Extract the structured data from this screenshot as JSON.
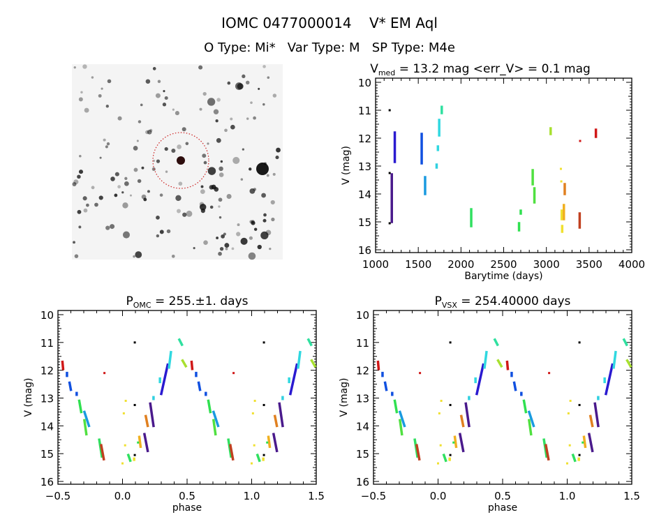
{
  "header": {
    "title": "IOMC 0477000014    V* EM Aql",
    "subtitle": "O Type: Mi*   Var Type: M   SP Type: M4e"
  },
  "finding_chart": {
    "target_circle_color": "#cc2020"
  },
  "chart_data": [
    {
      "type": "scatter",
      "title_main": "V",
      "title_sub": "med",
      "title_rest": " = 13.2 mag <err_V> = 0.1 mag",
      "xlabel": "Barytime (days)",
      "ylabel": "V (mag)",
      "xlim": [
        1000,
        4000
      ],
      "ylim": [
        16.1,
        9.85
      ],
      "y_inverted": true,
      "xticks": [
        "1000",
        "1500",
        "2000",
        "2500",
        "3000",
        "3500",
        "4000"
      ],
      "yticks": [
        "10",
        "11",
        "12",
        "13",
        "14",
        "15",
        "16"
      ],
      "grid": false,
      "segments": [
        {
          "x": 1165,
          "y1": 11.0,
          "y2": 11.0,
          "color": "#000000"
        },
        {
          "x": 1165,
          "y1": 13.25,
          "y2": 13.25,
          "color": "#000000"
        },
        {
          "x": 1165,
          "y1": 15.05,
          "y2": 15.05,
          "color": "#000000"
        },
        {
          "x": 1190,
          "y1": 13.3,
          "y2": 15.0,
          "color": "#4a1a8c"
        },
        {
          "x": 1225,
          "y1": 11.8,
          "y2": 12.85,
          "color": "#2a1ad0"
        },
        {
          "x": 1540,
          "y1": 11.85,
          "y2": 12.9,
          "color": "#1050e0"
        },
        {
          "x": 1580,
          "y1": 13.4,
          "y2": 14.0,
          "color": "#1a9ae0"
        },
        {
          "x": 1715,
          "y1": 12.95,
          "y2": 13.05,
          "color": "#30d0e0"
        },
        {
          "x": 1730,
          "y1": 12.3,
          "y2": 12.42,
          "color": "#30d8e0"
        },
        {
          "x": 1745,
          "y1": 11.35,
          "y2": 11.9,
          "color": "#30d8e0"
        },
        {
          "x": 1775,
          "y1": 10.88,
          "y2": 11.1,
          "color": "#30e0a0"
        },
        {
          "x": 2120,
          "y1": 14.55,
          "y2": 15.15,
          "color": "#30e060"
        },
        {
          "x": 2680,
          "y1": 15.05,
          "y2": 15.3,
          "color": "#30e050"
        },
        {
          "x": 2700,
          "y1": 14.6,
          "y2": 14.7,
          "color": "#30e050"
        },
        {
          "x": 2840,
          "y1": 13.15,
          "y2": 13.65,
          "color": "#50e040"
        },
        {
          "x": 2860,
          "y1": 13.8,
          "y2": 14.3,
          "color": "#50e040"
        },
        {
          "x": 3050,
          "y1": 11.65,
          "y2": 11.85,
          "color": "#a8e030"
        },
        {
          "x": 3170,
          "y1": 13.1,
          "y2": 13.12,
          "color": "#f0e030"
        },
        {
          "x": 3175,
          "y1": 13.55,
          "y2": 13.57,
          "color": "#f0e030"
        },
        {
          "x": 3180,
          "y1": 14.6,
          "y2": 14.9,
          "color": "#f0e030"
        },
        {
          "x": 3185,
          "y1": 15.15,
          "y2": 15.35,
          "color": "#f0e030"
        },
        {
          "x": 3205,
          "y1": 14.4,
          "y2": 14.9,
          "color": "#f0b020"
        },
        {
          "x": 3215,
          "y1": 13.65,
          "y2": 14.0,
          "color": "#e08020"
        },
        {
          "x": 3390,
          "y1": 14.7,
          "y2": 15.2,
          "color": "#c04020"
        },
        {
          "x": 3395,
          "y1": 12.1,
          "y2": 12.12,
          "color": "#d01818"
        },
        {
          "x": 3580,
          "y1": 11.7,
          "y2": 11.95,
          "color": "#d01818"
        }
      ]
    },
    {
      "type": "scatter",
      "title_main": "P",
      "title_sub": "OMC",
      "title_rest": " = 255.±1. days",
      "xlabel": "phase",
      "ylabel": "V (mag)",
      "xlim": [
        -0.5,
        1.5
      ],
      "ylim": [
        16.1,
        9.85
      ],
      "y_inverted": true,
      "xticks": [
        "-0.5",
        "0.0",
        "0.5",
        "1.0",
        "1.5"
      ],
      "yticks": [
        "10",
        "11",
        "12",
        "13",
        "14",
        "15",
        "16"
      ],
      "grid": false,
      "phase_repeated": true,
      "segments": [
        {
          "p1": 0.535,
          "p2": 0.54,
          "y1": 11.7,
          "y2": 11.95,
          "color": "#d01818"
        },
        {
          "p1": 0.86,
          "p2": 0.86,
          "y1": 12.1,
          "y2": 12.12,
          "color": "#d01818"
        },
        {
          "p1": 0.57,
          "p2": 0.57,
          "y1": 12.1,
          "y2": 12.2,
          "color": "#1050e0"
        },
        {
          "p1": 0.59,
          "p2": 0.6,
          "y1": 12.45,
          "y2": 12.7,
          "color": "#1050e0"
        },
        {
          "p1": 0.645,
          "p2": 0.645,
          "y1": 12.82,
          "y2": 12.88,
          "color": "#1050e0"
        },
        {
          "p1": 0.665,
          "p2": 0.68,
          "y1": 13.1,
          "y2": 13.5,
          "color": "#30e050"
        },
        {
          "p1": 0.705,
          "p2": 0.74,
          "y1": 13.5,
          "y2": 14.0,
          "color": "#1a9ae0"
        },
        {
          "p1": 0.705,
          "p2": 0.72,
          "y1": 13.8,
          "y2": 14.3,
          "color": "#50e040"
        },
        {
          "p1": 0.82,
          "p2": 0.84,
          "y1": 14.5,
          "y2": 15.1,
          "color": "#30e060"
        },
        {
          "p1": 0.835,
          "p2": 0.855,
          "y1": 14.7,
          "y2": 15.2,
          "color": "#c04020"
        },
        {
          "p1": 0.0,
          "p2": 0.0,
          "y1": 15.35,
          "y2": 15.37,
          "color": "#f0e030"
        },
        {
          "p1": 0.025,
          "p2": 0.025,
          "y1": 13.1,
          "y2": 13.12,
          "color": "#f0e030"
        },
        {
          "p1": 0.01,
          "p2": 0.01,
          "y1": 13.55,
          "y2": 13.57,
          "color": "#f0e030"
        },
        {
          "p1": 0.02,
          "p2": 0.02,
          "y1": 14.7,
          "y2": 14.72,
          "color": "#f0e030"
        },
        {
          "p1": 0.045,
          "p2": 0.06,
          "y1": 15.05,
          "y2": 15.25,
          "color": "#30e060"
        },
        {
          "p1": 0.095,
          "p2": 0.095,
          "y1": 11.0,
          "y2": 11.02,
          "color": "#000000"
        },
        {
          "p1": 0.095,
          "p2": 0.095,
          "y1": 13.25,
          "y2": 13.27,
          "color": "#000000"
        },
        {
          "p1": 0.095,
          "p2": 0.095,
          "y1": 15.05,
          "y2": 15.07,
          "color": "#000000"
        },
        {
          "p1": 0.09,
          "p2": 0.09,
          "y1": 15.18,
          "y2": 15.22,
          "color": "#f0e030"
        },
        {
          "p1": 0.13,
          "p2": 0.14,
          "y1": 14.4,
          "y2": 14.75,
          "color": "#f0b020"
        },
        {
          "p1": 0.12,
          "p2": 0.12,
          "y1": 14.6,
          "y2": 14.62,
          "color": "#30e050"
        },
        {
          "p1": 0.17,
          "p2": 0.195,
          "y1": 14.3,
          "y2": 14.9,
          "color": "#4a1a8c"
        },
        {
          "p1": 0.18,
          "p2": 0.195,
          "y1": 13.65,
          "y2": 14.0,
          "color": "#e08020"
        },
        {
          "p1": 0.215,
          "p2": 0.24,
          "y1": 13.2,
          "y2": 14.0,
          "color": "#4a1a8c"
        },
        {
          "p1": 0.24,
          "p2": 0.24,
          "y1": 12.97,
          "y2": 13.03,
          "color": "#30d0e0"
        },
        {
          "p1": 0.3,
          "p2": 0.35,
          "y1": 12.85,
          "y2": 11.8,
          "color": "#2a1ad0"
        },
        {
          "p1": 0.29,
          "p2": 0.29,
          "y1": 12.3,
          "y2": 12.42,
          "color": "#30d8e0"
        },
        {
          "p1": 0.36,
          "p2": 0.375,
          "y1": 11.9,
          "y2": 11.35,
          "color": "#30d8e0"
        },
        {
          "p1": 0.44,
          "p2": 0.46,
          "y1": 10.9,
          "y2": 11.08,
          "color": "#30e0a0"
        },
        {
          "p1": 0.465,
          "p2": 0.49,
          "y1": 11.65,
          "y2": 11.85,
          "color": "#a8e030"
        }
      ]
    },
    {
      "type": "scatter",
      "title_main": "P",
      "title_sub": "VSX",
      "title_rest": " = 254.40000 days",
      "xlabel": "phase",
      "ylabel": "V (mag)",
      "xlim": [
        -0.5,
        1.5
      ],
      "ylim": [
        16.1,
        9.85
      ],
      "y_inverted": true,
      "xticks": [
        "-0.5",
        "0.0",
        "0.5",
        "1.0",
        "1.5"
      ],
      "yticks": [
        "10",
        "11",
        "12",
        "13",
        "14",
        "15",
        "16"
      ],
      "grid": false,
      "phase_repeated": true,
      "segments": [
        {
          "p1": 0.535,
          "p2": 0.54,
          "y1": 11.7,
          "y2": 11.95,
          "color": "#d01818"
        },
        {
          "p1": 0.86,
          "p2": 0.86,
          "y1": 12.1,
          "y2": 12.12,
          "color": "#d01818"
        },
        {
          "p1": 0.57,
          "p2": 0.57,
          "y1": 12.1,
          "y2": 12.2,
          "color": "#1050e0"
        },
        {
          "p1": 0.59,
          "p2": 0.6,
          "y1": 12.45,
          "y2": 12.7,
          "color": "#1050e0"
        },
        {
          "p1": 0.645,
          "p2": 0.645,
          "y1": 12.82,
          "y2": 12.88,
          "color": "#1050e0"
        },
        {
          "p1": 0.665,
          "p2": 0.68,
          "y1": 13.1,
          "y2": 13.5,
          "color": "#30e050"
        },
        {
          "p1": 0.705,
          "p2": 0.74,
          "y1": 13.5,
          "y2": 14.0,
          "color": "#1a9ae0"
        },
        {
          "p1": 0.705,
          "p2": 0.72,
          "y1": 13.8,
          "y2": 14.3,
          "color": "#50e040"
        },
        {
          "p1": 0.82,
          "p2": 0.84,
          "y1": 14.5,
          "y2": 15.1,
          "color": "#30e060"
        },
        {
          "p1": 0.835,
          "p2": 0.855,
          "y1": 14.7,
          "y2": 15.2,
          "color": "#c04020"
        },
        {
          "p1": 0.0,
          "p2": 0.0,
          "y1": 15.35,
          "y2": 15.37,
          "color": "#f0e030"
        },
        {
          "p1": 0.025,
          "p2": 0.025,
          "y1": 13.1,
          "y2": 13.12,
          "color": "#f0e030"
        },
        {
          "p1": 0.01,
          "p2": 0.01,
          "y1": 13.55,
          "y2": 13.57,
          "color": "#f0e030"
        },
        {
          "p1": 0.02,
          "p2": 0.02,
          "y1": 14.7,
          "y2": 14.72,
          "color": "#f0e030"
        },
        {
          "p1": 0.045,
          "p2": 0.06,
          "y1": 15.05,
          "y2": 15.25,
          "color": "#30e060"
        },
        {
          "p1": 0.095,
          "p2": 0.095,
          "y1": 11.0,
          "y2": 11.02,
          "color": "#000000"
        },
        {
          "p1": 0.095,
          "p2": 0.095,
          "y1": 13.25,
          "y2": 13.27,
          "color": "#000000"
        },
        {
          "p1": 0.095,
          "p2": 0.095,
          "y1": 15.05,
          "y2": 15.07,
          "color": "#000000"
        },
        {
          "p1": 0.09,
          "p2": 0.09,
          "y1": 15.18,
          "y2": 15.22,
          "color": "#f0e030"
        },
        {
          "p1": 0.13,
          "p2": 0.14,
          "y1": 14.4,
          "y2": 14.75,
          "color": "#f0b020"
        },
        {
          "p1": 0.12,
          "p2": 0.12,
          "y1": 14.6,
          "y2": 14.62,
          "color": "#30e050"
        },
        {
          "p1": 0.17,
          "p2": 0.195,
          "y1": 14.3,
          "y2": 14.9,
          "color": "#4a1a8c"
        },
        {
          "p1": 0.18,
          "p2": 0.195,
          "y1": 13.65,
          "y2": 14.0,
          "color": "#e08020"
        },
        {
          "p1": 0.215,
          "p2": 0.24,
          "y1": 13.2,
          "y2": 14.0,
          "color": "#4a1a8c"
        },
        {
          "p1": 0.24,
          "p2": 0.24,
          "y1": 12.97,
          "y2": 13.03,
          "color": "#30d0e0"
        },
        {
          "p1": 0.3,
          "p2": 0.35,
          "y1": 12.85,
          "y2": 11.8,
          "color": "#2a1ad0"
        },
        {
          "p1": 0.29,
          "p2": 0.29,
          "y1": 12.3,
          "y2": 12.42,
          "color": "#30d8e0"
        },
        {
          "p1": 0.36,
          "p2": 0.375,
          "y1": 11.9,
          "y2": 11.35,
          "color": "#30d8e0"
        },
        {
          "p1": 0.44,
          "p2": 0.46,
          "y1": 10.9,
          "y2": 11.08,
          "color": "#30e0a0"
        },
        {
          "p1": 0.465,
          "p2": 0.49,
          "y1": 11.65,
          "y2": 11.85,
          "color": "#a8e030"
        }
      ]
    }
  ]
}
